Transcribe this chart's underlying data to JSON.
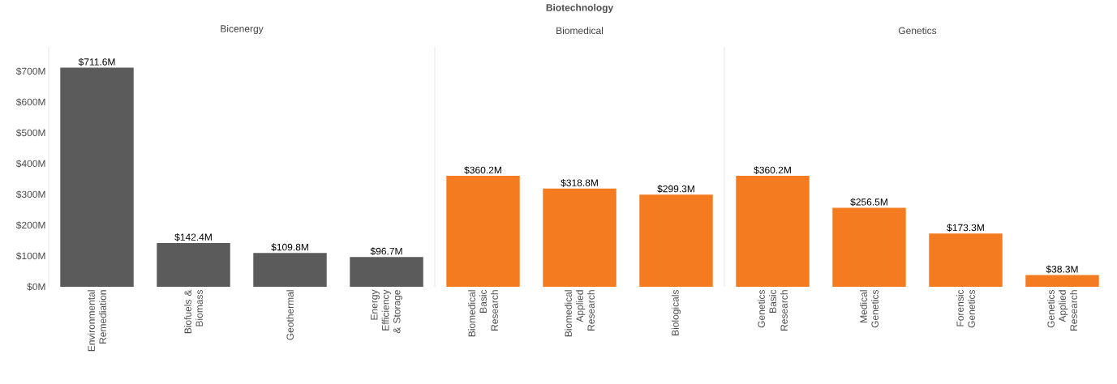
{
  "chart_data": [
    {
      "type": "bar",
      "title": "Bicenergy",
      "categories": [
        "Environmental Remediation",
        "Biofuels & Biomass",
        "Geothermal",
        "Energy Efficiency & Storage"
      ],
      "values": [
        711.6,
        142.4,
        109.8,
        96.7
      ],
      "value_labels": [
        "$711.6M",
        "$142.4M",
        "$109.8M",
        "$96.7M"
      ],
      "color": "#5b5b5b",
      "ylim": [
        0,
        780
      ],
      "yticks": [
        {
          "value": 0,
          "label": "$0M"
        },
        {
          "value": 100,
          "label": "$100M"
        },
        {
          "value": 200,
          "label": "$200M"
        },
        {
          "value": 300,
          "label": "$300M"
        },
        {
          "value": 400,
          "label": "$400M"
        },
        {
          "value": 500,
          "label": "$500M"
        },
        {
          "value": 600,
          "label": "$600M"
        },
        {
          "value": 700,
          "label": "$700M"
        }
      ]
    },
    {
      "type": "bar",
      "title": "Biomedical",
      "annotations": [
        "Biotechnology"
      ],
      "categories": [
        "Biomedical Basic Research",
        "Biomedical Applied Research",
        "Biologicals"
      ],
      "values": [
        360.2,
        318.8,
        299.3
      ],
      "value_labels": [
        "$360.2M",
        "$318.8M",
        "$299.3M"
      ],
      "color": "#f47b20",
      "ylim": [
        0,
        780
      ]
    },
    {
      "type": "bar",
      "title": "Genetics",
      "categories": [
        "Genetics Basic Research",
        "Medical Genetics",
        "Forensic Genetics",
        "Genetics Applied Research"
      ],
      "values": [
        360.2,
        256.5,
        173.3,
        38.3
      ],
      "value_labels": [
        "$360.2M",
        "$256.5M",
        "$173.3M",
        "$38.3M"
      ],
      "color": "#f47b20",
      "ylim": [
        0,
        780
      ]
    }
  ]
}
